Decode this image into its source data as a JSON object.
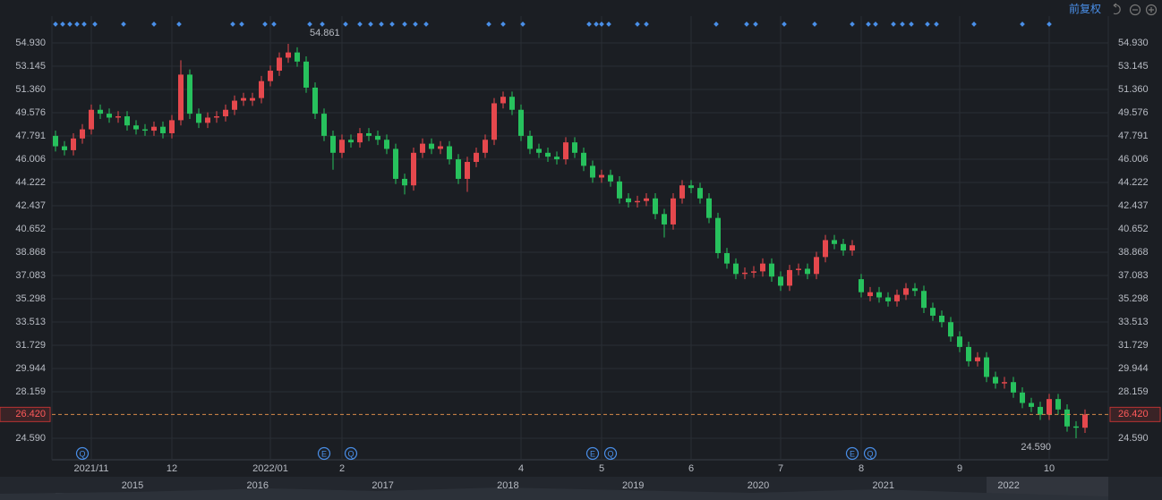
{
  "toolbar": {
    "adjust": "前复权"
  },
  "navigator": {
    "years": [
      2015,
      2016,
      2017,
      2018,
      2019,
      2020,
      2021,
      2022
    ]
  },
  "chart_data": {
    "type": "candlestick",
    "up_color": "#e5484d",
    "down_color": "#27c15d",
    "categories": [
      null,
      null,
      null,
      null,
      "2021/11",
      null,
      null,
      null,
      null,
      null,
      null,
      null,
      null,
      "12",
      null,
      null,
      null,
      null,
      null,
      null,
      null,
      null,
      null,
      null,
      "2022/01",
      null,
      null,
      null,
      null,
      null,
      null,
      null,
      "2",
      null,
      null,
      null,
      null,
      null,
      null,
      null,
      null,
      null,
      null,
      null,
      null,
      null,
      null,
      null,
      null,
      null,
      null,
      null,
      "4",
      null,
      null,
      null,
      null,
      null,
      null,
      null,
      null,
      "5",
      null,
      null,
      null,
      null,
      null,
      null,
      null,
      null,
      null,
      "6",
      null,
      null,
      null,
      null,
      null,
      null,
      null,
      null,
      null,
      "7",
      null,
      null,
      null,
      null,
      null,
      null,
      null,
      null,
      "8",
      null,
      null,
      null,
      null,
      null,
      null,
      null,
      null,
      null,
      null,
      "9",
      null,
      null,
      null,
      null,
      null,
      null,
      null,
      null,
      null,
      "10",
      null,
      null,
      null,
      null
    ],
    "events": [
      null,
      null,
      null,
      "Q",
      null,
      null,
      null,
      null,
      null,
      null,
      null,
      null,
      null,
      null,
      null,
      null,
      null,
      null,
      null,
      null,
      null,
      null,
      null,
      null,
      null,
      null,
      null,
      null,
      null,
      null,
      "E",
      null,
      null,
      "Q",
      null,
      null,
      null,
      null,
      null,
      null,
      null,
      null,
      null,
      null,
      null,
      null,
      null,
      null,
      null,
      null,
      null,
      null,
      null,
      null,
      null,
      null,
      null,
      null,
      null,
      null,
      "E",
      null,
      "Q",
      null,
      null,
      null,
      null,
      null,
      null,
      null,
      null,
      null,
      null,
      null,
      null,
      null,
      null,
      null,
      null,
      null,
      null,
      null,
      null,
      null,
      null,
      null,
      null,
      null,
      null,
      "E",
      null,
      "Q",
      null,
      null,
      null,
      null,
      null,
      null,
      null,
      null,
      null,
      null,
      null,
      null,
      null,
      null,
      null,
      null,
      null,
      null,
      null,
      null,
      null,
      null,
      null,
      null
    ],
    "open": [
      47.8,
      47.0,
      46.7,
      47.6,
      48.3,
      49.8,
      49.5,
      49.2,
      49.3,
      48.6,
      48.3,
      48.2,
      48.5,
      48.0,
      49.0,
      52.5,
      49.5,
      48.8,
      49.2,
      49.3,
      49.8,
      50.5,
      50.5,
      50.7,
      52.0,
      52.8,
      53.8,
      54.2,
      53.5,
      51.5,
      49.5,
      47.8,
      46.5,
      47.5,
      47.3,
      48.0,
      47.8,
      47.5,
      46.8,
      44.5,
      44.0,
      46.5,
      47.2,
      46.8,
      47.0,
      46.0,
      44.5,
      45.8,
      46.5,
      47.5,
      50.3,
      50.8,
      49.8,
      47.8,
      46.8,
      46.5,
      46.2,
      46.0,
      47.3,
      46.5,
      45.5,
      44.6,
      44.8,
      44.3,
      43.0,
      42.7,
      42.8,
      43.0,
      41.8,
      41.0,
      43.0,
      44.0,
      43.8,
      43.0,
      41.5,
      38.8,
      38.0,
      37.2,
      37.3,
      37.4,
      38.0,
      37.0,
      36.3,
      37.5,
      37.6,
      37.2,
      38.5,
      39.8,
      39.5,
      39.0,
      36.8,
      35.5,
      35.8,
      35.4,
      35.1,
      35.6,
      36.1,
      35.9,
      34.6,
      34.0,
      33.5,
      32.4,
      31.6,
      30.5,
      30.8,
      29.3,
      28.8,
      28.9,
      28.1,
      27.3,
      27.0,
      26.4,
      27.6,
      26.8,
      25.5,
      25.4
    ],
    "high": [
      48.2,
      47.4,
      48.0,
      48.7,
      50.2,
      50.2,
      49.9,
      49.7,
      49.7,
      49.0,
      48.7,
      48.9,
      48.9,
      49.4,
      53.6,
      52.9,
      49.9,
      49.6,
      49.7,
      50.2,
      50.9,
      51.1,
      51.1,
      52.4,
      53.2,
      54.2,
      54.861,
      54.6,
      53.9,
      51.9,
      49.9,
      48.2,
      47.9,
      47.9,
      48.4,
      48.4,
      48.2,
      47.9,
      47.2,
      44.9,
      46.9,
      47.6,
      47.6,
      47.4,
      47.4,
      46.4,
      46.2,
      46.9,
      47.9,
      50.7,
      51.2,
      51.2,
      50.2,
      48.2,
      47.2,
      46.9,
      46.6,
      47.7,
      47.7,
      46.9,
      45.9,
      45.2,
      45.2,
      44.7,
      43.4,
      43.2,
      43.4,
      43.4,
      42.2,
      43.4,
      44.4,
      44.4,
      44.2,
      43.4,
      41.9,
      39.2,
      38.4,
      37.7,
      37.8,
      38.4,
      38.4,
      37.4,
      37.9,
      38.0,
      38.0,
      38.9,
      40.2,
      40.2,
      39.9,
      39.8,
      37.2,
      36.2,
      36.2,
      35.8,
      36.0,
      36.5,
      36.5,
      36.3,
      35.0,
      34.4,
      33.9,
      32.8,
      32.0,
      31.2,
      31.2,
      29.7,
      29.3,
      29.3,
      28.5,
      27.7,
      27.4,
      28.0,
      28.0,
      27.2,
      25.9,
      26.8
    ],
    "low": [
      46.6,
      46.3,
      46.3,
      47.2,
      47.9,
      49.1,
      48.8,
      48.8,
      48.2,
      47.9,
      47.8,
      47.8,
      47.6,
      47.6,
      48.6,
      49.1,
      48.4,
      48.4,
      48.8,
      48.9,
      49.4,
      50.1,
      50.1,
      50.3,
      51.6,
      52.4,
      53.4,
      53.1,
      51.1,
      49.1,
      47.4,
      45.2,
      46.1,
      46.9,
      46.9,
      47.4,
      47.1,
      46.4,
      44.1,
      43.3,
      43.6,
      46.1,
      46.4,
      46.4,
      45.6,
      44.1,
      43.5,
      45.4,
      46.1,
      47.1,
      49.9,
      49.4,
      47.4,
      46.4,
      46.1,
      45.8,
      45.6,
      45.6,
      46.1,
      45.1,
      44.2,
      44.2,
      43.9,
      42.6,
      42.3,
      42.3,
      42.4,
      41.4,
      40.0,
      40.6,
      42.6,
      43.4,
      42.6,
      41.1,
      38.4,
      37.6,
      36.8,
      36.8,
      36.9,
      37.0,
      36.6,
      35.9,
      35.9,
      37.1,
      36.8,
      36.8,
      38.1,
      39.1,
      38.6,
      38.6,
      35.4,
      35.1,
      35.0,
      34.7,
      34.7,
      35.2,
      35.5,
      34.2,
      33.6,
      33.1,
      32.0,
      31.2,
      30.1,
      30.1,
      28.9,
      28.4,
      28.4,
      27.7,
      26.9,
      26.6,
      26.0,
      26.0,
      26.4,
      25.1,
      24.59,
      25.0
    ],
    "close": [
      47.0,
      46.7,
      47.6,
      48.3,
      49.8,
      49.5,
      49.2,
      49.3,
      48.6,
      48.3,
      48.2,
      48.5,
      48.0,
      49.0,
      52.5,
      49.5,
      48.8,
      49.2,
      49.3,
      49.8,
      50.5,
      50.7,
      50.7,
      52.0,
      52.8,
      53.8,
      54.2,
      53.5,
      51.5,
      49.5,
      47.8,
      46.5,
      47.5,
      47.3,
      48.0,
      47.8,
      47.5,
      46.8,
      44.5,
      44.0,
      46.5,
      47.2,
      46.8,
      47.0,
      46.0,
      44.5,
      45.8,
      46.5,
      47.5,
      50.3,
      50.8,
      49.8,
      47.8,
      46.8,
      46.5,
      46.2,
      46.0,
      47.3,
      46.5,
      45.5,
      44.6,
      44.8,
      44.3,
      43.0,
      42.7,
      42.8,
      43.0,
      41.8,
      41.0,
      43.0,
      44.0,
      43.8,
      43.0,
      41.5,
      38.8,
      38.0,
      37.2,
      37.3,
      37.4,
      38.0,
      37.0,
      36.3,
      37.5,
      37.6,
      37.2,
      38.5,
      39.8,
      39.5,
      39.0,
      39.4,
      35.8,
      35.8,
      35.4,
      35.1,
      35.6,
      36.1,
      35.9,
      34.6,
      34.0,
      33.5,
      32.4,
      31.6,
      30.5,
      30.8,
      29.3,
      28.8,
      28.9,
      28.1,
      27.3,
      27.0,
      26.4,
      27.6,
      26.8,
      25.5,
      25.4,
      26.42
    ],
    "high_label": 54.861,
    "low_label": {
      "value": 24.59,
      "label": "24.590"
    },
    "last_price": {
      "value": 26.42,
      "label": "26.420"
    },
    "ylim": [
      23.08,
      56.99
    ],
    "yticks": [
      {
        "value": 54.93,
        "label": "54.930"
      },
      53.145,
      {
        "value": 51.36,
        "label": "51.360"
      },
      49.576,
      47.791,
      46.006,
      44.222,
      42.437,
      40.652,
      38.868,
      37.083,
      35.298,
      33.513,
      31.729,
      29.944,
      28.159,
      {
        "value": 24.59,
        "label": "24.590"
      }
    ],
    "grid": true
  }
}
